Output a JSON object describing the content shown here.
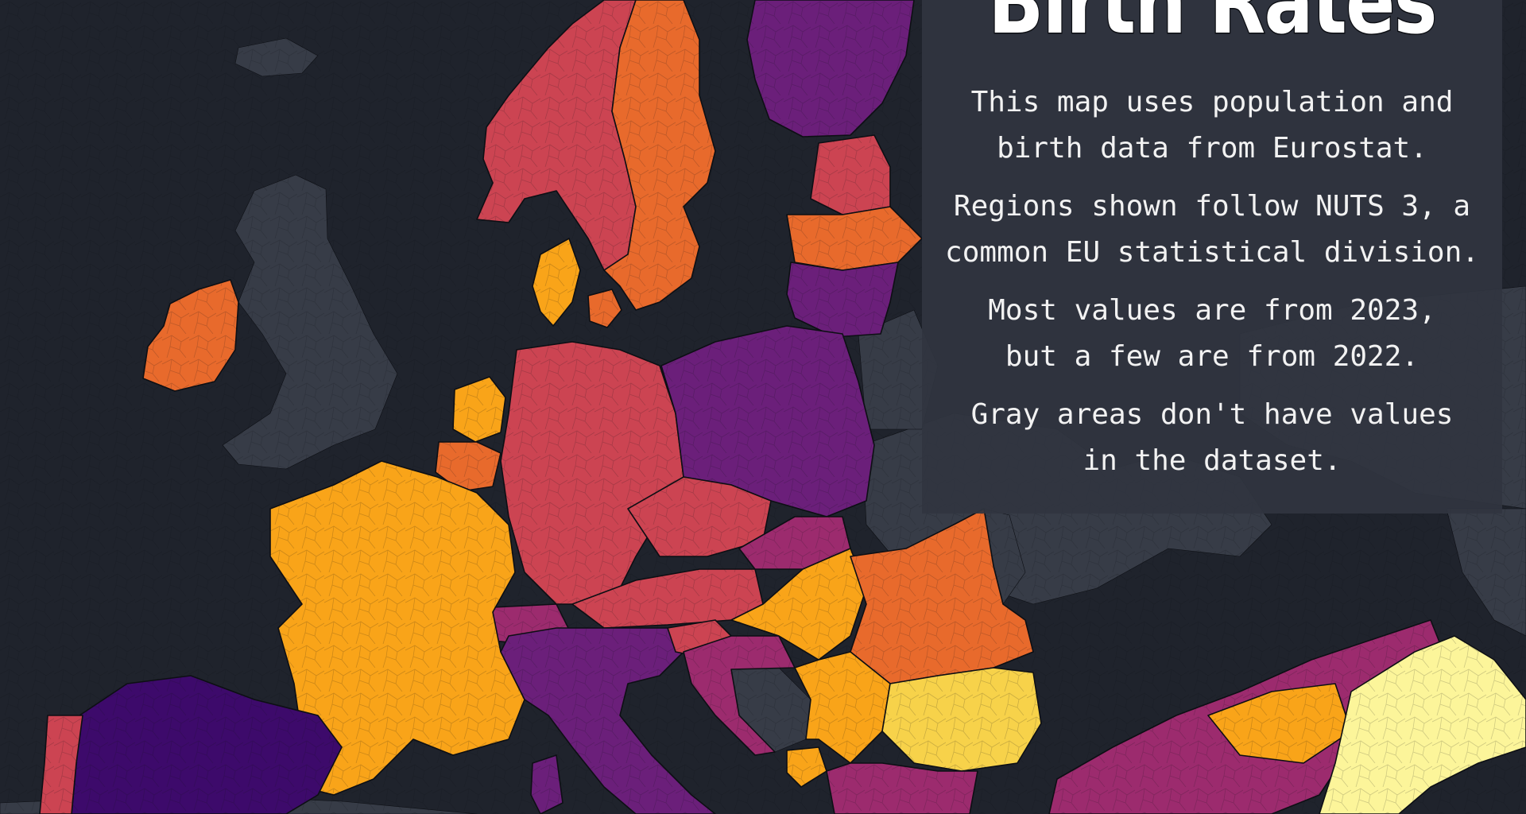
{
  "title": "Birth Rates",
  "info": {
    "p1": [
      "This map uses population and",
      "birth data from Eurostat."
    ],
    "p2": [
      "Regions shown follow NUTS 3, a",
      "common EU statistical division."
    ],
    "p3": [
      "Most values are from 2023,",
      "but a few are from 2022."
    ],
    "p4": [
      "Gray areas don't have values",
      "in the dataset."
    ]
  },
  "colors": {
    "water": "#1f232c",
    "no_data_land": "#373c47",
    "very_low": "#3d0a6b",
    "low": "#6b1f7a",
    "mid_low": "#9c2b6e",
    "mid": "#cc4452",
    "mid_high": "#e86a2c",
    "high": "#f9a419",
    "very_high": "#f7d24a",
    "highest": "#fcf59a",
    "border": "#0d0f14"
  },
  "regions": [
    {
      "name": "Ireland",
      "level": "mid_high"
    },
    {
      "name": "United Kingdom",
      "level": "no_data_land"
    },
    {
      "name": "Iceland",
      "level": "no_data_land"
    },
    {
      "name": "Norway",
      "level": "mid"
    },
    {
      "name": "Sweden",
      "level": "mid_high"
    },
    {
      "name": "Finland",
      "level": "low"
    },
    {
      "name": "Estonia",
      "level": "mid"
    },
    {
      "name": "Latvia",
      "level": "mid_high"
    },
    {
      "name": "Lithuania",
      "level": "low"
    },
    {
      "name": "Denmark",
      "level": "high"
    },
    {
      "name": "Netherlands",
      "level": "high"
    },
    {
      "name": "Belgium",
      "level": "mid_high"
    },
    {
      "name": "Germany",
      "level": "mid"
    },
    {
      "name": "Poland",
      "level": "low"
    },
    {
      "name": "Czechia",
      "level": "mid"
    },
    {
      "name": "Slovakia",
      "level": "mid_low"
    },
    {
      "name": "Austria",
      "level": "mid"
    },
    {
      "name": "Switzerland",
      "level": "mid_low"
    },
    {
      "name": "France",
      "level": "high"
    },
    {
      "name": "Italy",
      "level": "low"
    },
    {
      "name": "Slovenia",
      "level": "mid"
    },
    {
      "name": "Croatia",
      "level": "mid_low"
    },
    {
      "name": "Hungary",
      "level": "high"
    },
    {
      "name": "Romania",
      "level": "mid_high"
    },
    {
      "name": "Serbia",
      "level": "high"
    },
    {
      "name": "Bosnia and Herzegovina",
      "level": "no_data_land"
    },
    {
      "name": "Montenegro",
      "level": "high"
    },
    {
      "name": "Bulgaria",
      "level": "very_high"
    },
    {
      "name": "Turkey",
      "level": "mid_low"
    },
    {
      "name": "Eastern Turkey",
      "level": "highest"
    },
    {
      "name": "Spain",
      "level": "very_low"
    },
    {
      "name": "Portugal",
      "level": "mid"
    },
    {
      "name": "Greece",
      "level": "mid_low"
    },
    {
      "name": "Moldova",
      "level": "no_data_land"
    },
    {
      "name": "Ukraine",
      "level": "no_data_land"
    }
  ]
}
